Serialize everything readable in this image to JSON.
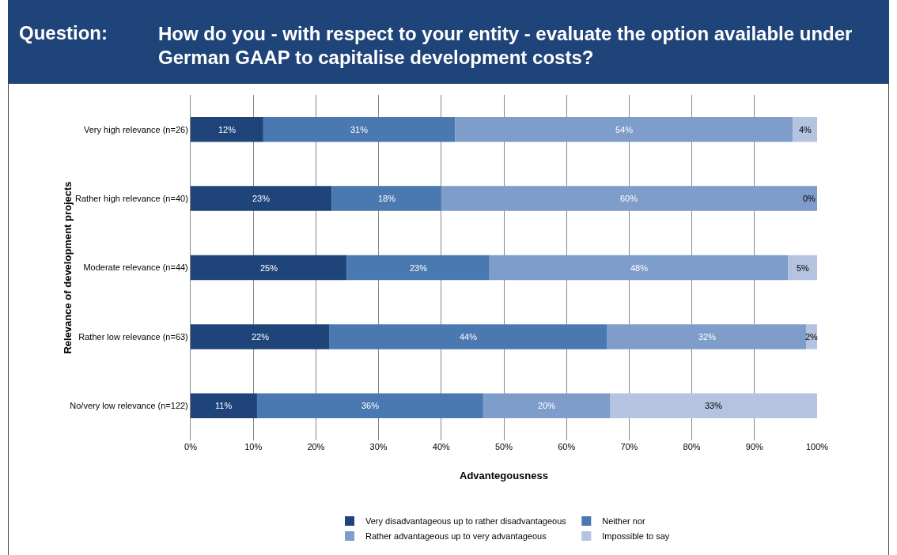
{
  "chart_data": {
    "type": "bar",
    "orientation": "horizontal",
    "stacked": true,
    "title": "Question:",
    "subtitle": "How do you - with respect to your entity - evaluate the option available under German GAAP to capitalise development  costs?",
    "xlabel": "Advantegousness",
    "ylabel": "Relevance of development projects",
    "categories": [
      "Very high relevance (n=26)",
      "Rather high relevance (n=40)",
      "Moderate relevance (n=44)",
      "Rather low relevance (n=63)",
      "No/very low relevance (n=122)"
    ],
    "series": [
      {
        "name": "Very disadvantageous up to rather disadvantageous",
        "color": "#1f4479",
        "values": [
          11.6,
          22.5,
          24.9,
          22.1,
          10.6
        ],
        "value_labels": [
          "12%",
          "23%",
          "25%",
          "22%",
          "11%"
        ]
      },
      {
        "name": "Neither nor",
        "color": "#4a78b0",
        "values": [
          30.6,
          17.5,
          22.8,
          44.4,
          36.1
        ],
        "value_labels": [
          "31%",
          "18%",
          "23%",
          "44%",
          "36%"
        ]
      },
      {
        "name": "Rather advantageous up to very advantageous",
        "color": "#7e9dcb",
        "values": [
          53.9,
          60.0,
          47.7,
          31.8,
          20.3
        ],
        "value_labels": [
          "54%",
          "60%",
          "48%",
          "32%",
          "20%"
        ]
      },
      {
        "name": "Impossible to say",
        "color": "#b4c4e0",
        "values": [
          3.9,
          0,
          4.6,
          1.7,
          33.0
        ],
        "value_labels": [
          "4%",
          "0%",
          "5%",
          "2%",
          "33%"
        ]
      }
    ],
    "xlim": [
      0,
      100
    ],
    "xticks": [
      {
        "value": 0,
        "label": "0%"
      },
      {
        "value": 10,
        "label": "10%"
      },
      {
        "value": 20,
        "label": "20%"
      },
      {
        "value": 30,
        "label": "30%"
      },
      {
        "value": 40,
        "label": "40%"
      },
      {
        "value": 50,
        "label": "50%"
      },
      {
        "value": 60,
        "label": "60%"
      },
      {
        "value": 70,
        "label": "70%"
      },
      {
        "value": 80,
        "label": "80%"
      },
      {
        "value": 90,
        "label": "90%"
      },
      {
        "value": 100,
        "label": "100%"
      }
    ],
    "grid": "x",
    "legend": "bottom"
  }
}
